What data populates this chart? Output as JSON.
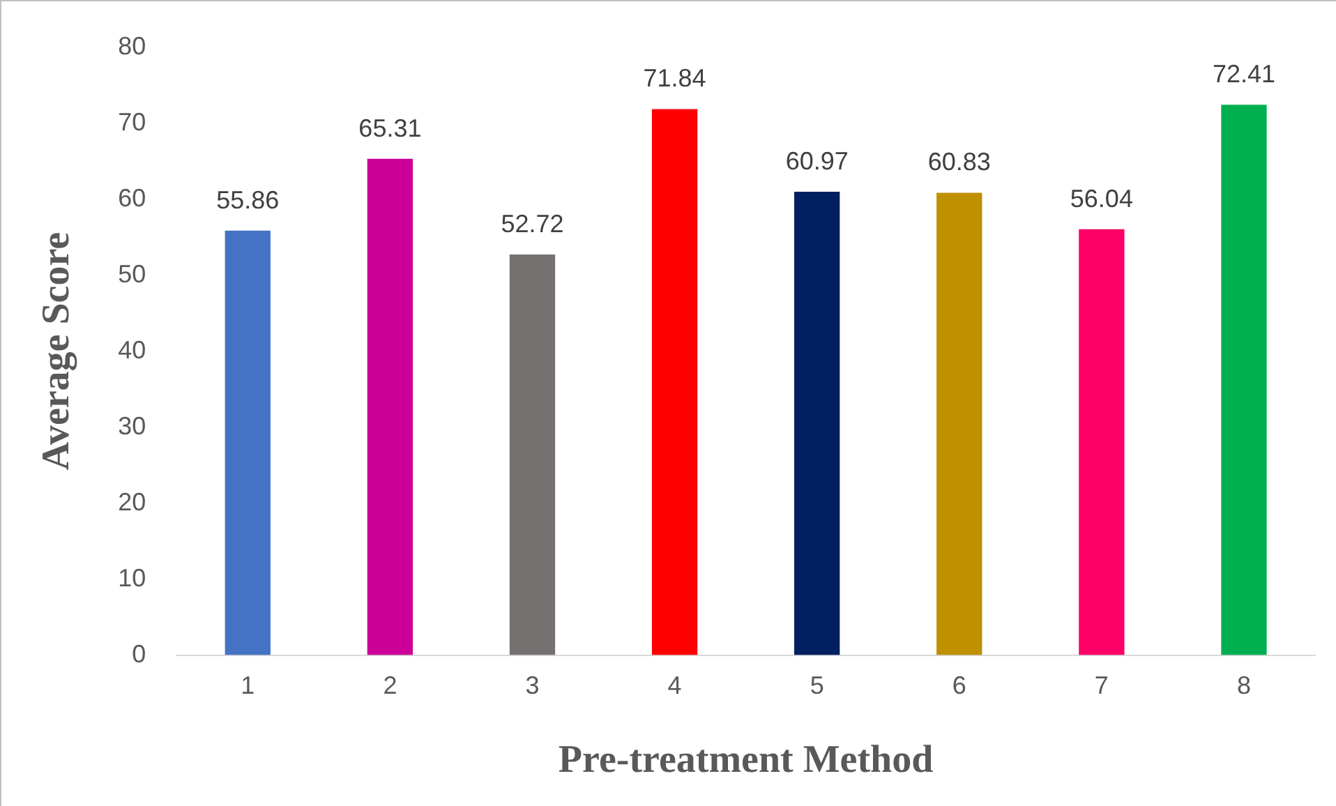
{
  "chart_data": {
    "type": "bar",
    "xlabel": "Pre-treatment Method",
    "ylabel": "Average Score",
    "categories": [
      "1",
      "2",
      "3",
      "4",
      "5",
      "6",
      "7",
      "8"
    ],
    "values": [
      55.86,
      65.31,
      52.72,
      71.84,
      60.97,
      60.83,
      56.04,
      72.41
    ],
    "colors": [
      "#4472c4",
      "#cc0099",
      "#767171",
      "#ff0000",
      "#002060",
      "#bf9000",
      "#ff0066",
      "#00b050"
    ],
    "ylim": [
      0,
      80
    ],
    "yticks": [
      0,
      10,
      20,
      30,
      40,
      50,
      60,
      70,
      80
    ],
    "grid": false,
    "legend": false,
    "data_labels": true
  }
}
